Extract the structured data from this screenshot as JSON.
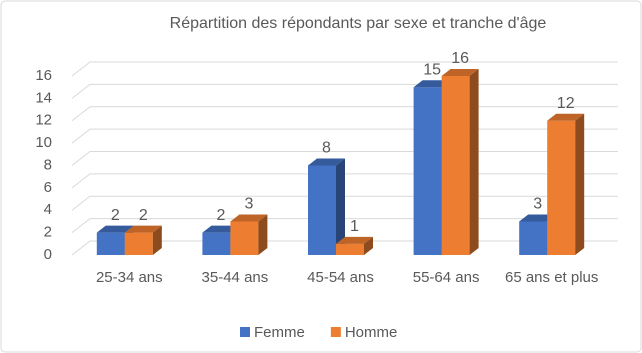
{
  "chart_data": {
    "type": "bar3d",
    "title": "Répartition des répondants par sexe et tranche d'âge",
    "categories": [
      "25-34 ans",
      "35-44 ans",
      "45-54 ans",
      "55-64 ans",
      "65 ans et plus"
    ],
    "series": [
      {
        "name": "Femme",
        "color": "#4472c4",
        "values": [
          2,
          2,
          8,
          15,
          3
        ]
      },
      {
        "name": "Homme",
        "color": "#ed7d31",
        "values": [
          2,
          3,
          1,
          16,
          12
        ]
      }
    ],
    "ylim": [
      0,
      16
    ],
    "yticks": [
      0,
      2,
      4,
      6,
      8,
      10,
      12,
      14,
      16
    ],
    "grid": true,
    "legend": "bottom"
  }
}
